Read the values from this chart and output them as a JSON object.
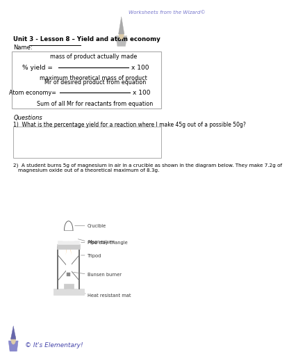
{
  "title_bold": "Unit 3 - Lesson 8 – Yield and atom economy",
  "name_label": "Name:",
  "yield_num": "mass of product actually made",
  "yield_den": "maximum theoretical mass of product",
  "atom_num": "Mr of desired product from equation",
  "atom_den": "Sum of all Mr for reactants from equation",
  "questions_label": "Questions",
  "q1": "1)  What is the percentage yield for a reaction where I make 45g out of a possible 50g?",
  "q2_line1": "2)  A student burns 5g of magnesium in air in a crucible as shown in the diagram below. They make 7.2g of",
  "q2_line2": "magnesium oxide out of a theoretical maximum of 8.3g.",
  "diagram_labels": [
    "Crucible",
    "Pipe clay triangle",
    "Magnesium",
    "Tripod",
    "Bunsen burner",
    "Heat resistant mat"
  ],
  "footer_text": "© It's Elementary!",
  "header_text": "Worksheets from the Wizard©",
  "bg_color": "#ffffff",
  "text_color": "#000000",
  "header_color": "#7777cc",
  "footer_color": "#4444aa"
}
